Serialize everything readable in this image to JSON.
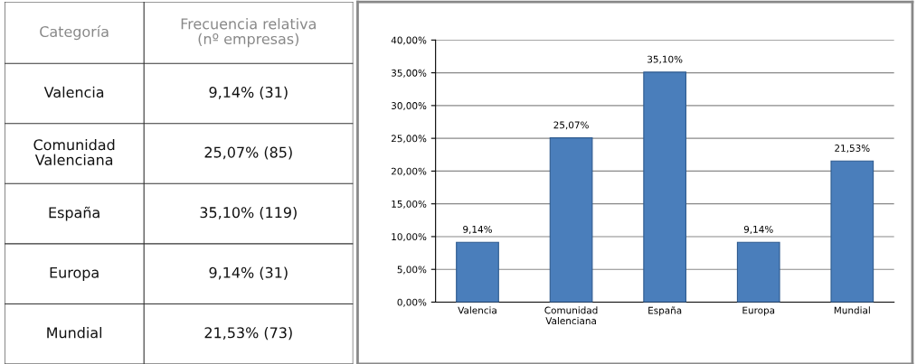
{
  "chart_data": [
    {
      "type": "other",
      "annotations": [
        "Categoría",
        "Frecuencia relativa\n(nº empresas)",
        "Valencia",
        "9,14% (31)",
        "Comunidad\nValenciana",
        "25,07% (85)",
        "España",
        "35,10% (119)",
        "Europa",
        "9,14% (31)",
        "Mundial",
        "21,53% (73)"
      ]
    },
    {
      "type": "bar",
      "categories": [
        "Valencia",
        "Comunidad\nValenciana",
        "España",
        "Europa",
        "Mundial"
      ],
      "values": [
        9.14,
        25.07,
        35.1,
        9.14,
        21.53
      ],
      "value_labels": [
        "9,14%",
        "25,07%",
        "35,10%",
        "9,14%",
        "21,53%"
      ],
      "color": "#4a7ebb",
      "ylim": [
        0,
        40
      ],
      "yticks": [
        {
          "value": 0,
          "label": "0,00%"
        },
        {
          "value": 5,
          "label": "5,00%"
        },
        {
          "value": 10,
          "label": "10,00%"
        },
        {
          "value": 15,
          "label": "15,00%"
        },
        {
          "value": 20,
          "label": "20,00%"
        },
        {
          "value": 25,
          "label": "25,00%"
        },
        {
          "value": 30,
          "label": "30,00%"
        },
        {
          "value": 35,
          "label": "35,00%"
        },
        {
          "value": 40,
          "label": "40,00%"
        }
      ],
      "grid": "y",
      "legend": false
    }
  ]
}
